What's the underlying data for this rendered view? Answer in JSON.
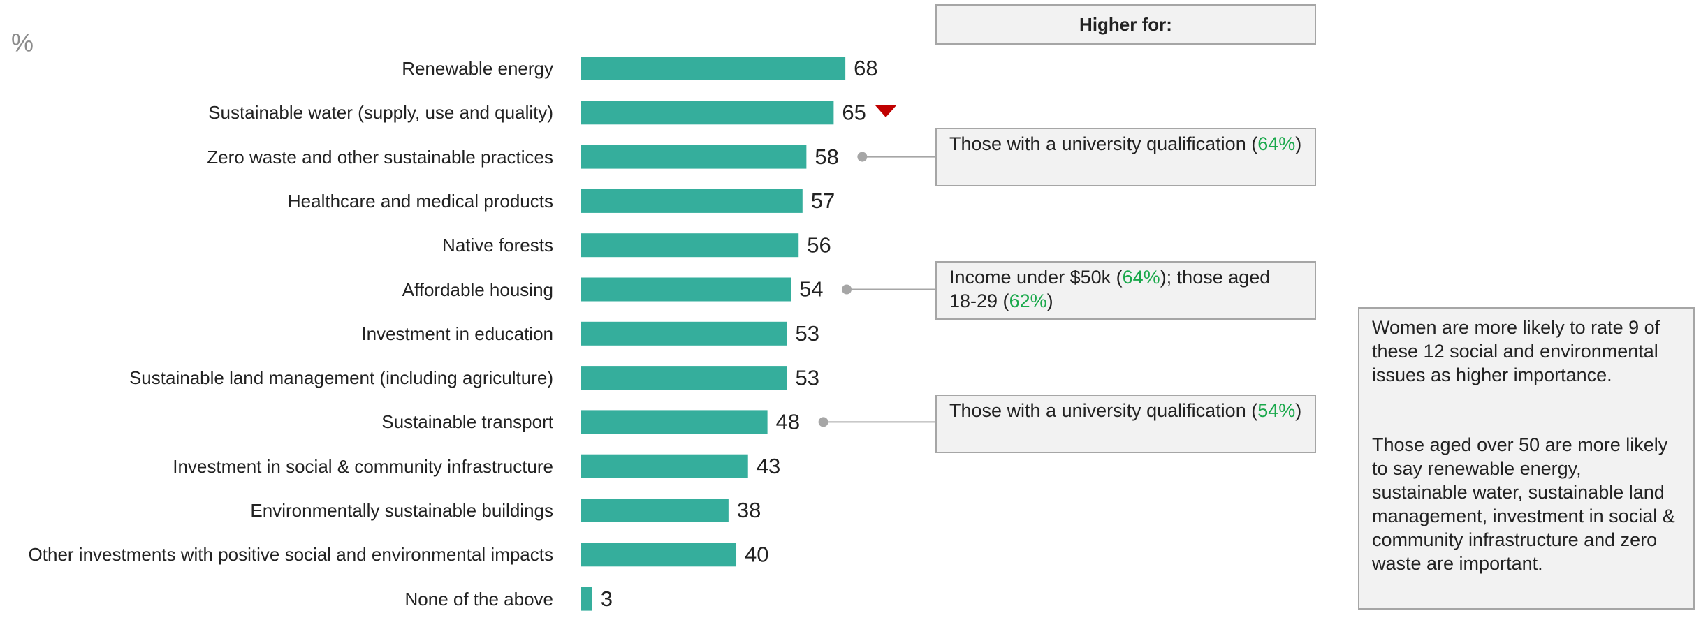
{
  "chart_data": {
    "type": "bar",
    "orientation": "horizontal",
    "unit_label": "%",
    "categories": [
      "Renewable energy",
      "Sustainable water (supply, use and quality)",
      "Zero waste and other sustainable practices",
      "Healthcare and medical products",
      "Native forests",
      "Affordable housing",
      "Investment in education",
      "Sustainable land management (including agriculture)",
      "Sustainable transport",
      "Investment in social & community infrastructure",
      "Environmentally sustainable buildings",
      "Other investments with positive social and environmental impacts",
      "None of the above"
    ],
    "values": [
      68,
      65,
      58,
      57,
      56,
      54,
      53,
      53,
      48,
      43,
      38,
      40,
      3
    ],
    "color": "#35ae9c",
    "callout_header": "Higher for:",
    "callouts": [
      {
        "parts": [
          "Those with a university qualification (",
          "64%",
          ")"
        ]
      },
      {
        "parts": [
          "Income under $50k (",
          "64%",
          "); those aged 18-29 (",
          "62%",
          ")"
        ]
      },
      {
        "parts": [
          "Those with a university qualification (",
          "54%",
          ")"
        ]
      }
    ],
    "notes": [
      "Women are more likely to rate 9 of these 12 social and environmental issues as higher importance.",
      "Those aged over 50 are more likely to say renewable energy, sustainable water, sustainable land management, investment in social & community infrastructure and zero waste are important."
    ]
  }
}
